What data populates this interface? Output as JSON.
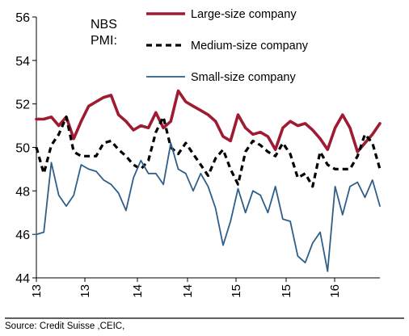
{
  "chart_data": {
    "type": "line",
    "title_lines": [
      "NBS",
      "PMI:"
    ],
    "xlabel": "",
    "ylabel": "",
    "ylim": [
      44,
      56
    ],
    "yticks": [
      44,
      46,
      48,
      50,
      52,
      54,
      56
    ],
    "x_tick_labels": [
      "13",
      "13",
      "14",
      "14",
      "15",
      "15",
      "16"
    ],
    "grid": false,
    "legend_position": "top-right",
    "x": [
      0,
      1,
      2,
      3,
      4,
      5,
      6,
      7,
      8,
      9,
      10,
      11,
      12,
      13,
      14,
      15,
      16,
      17,
      18,
      19,
      20,
      21,
      22,
      23,
      24,
      25,
      26,
      27,
      28,
      29,
      30,
      31,
      32,
      33,
      34,
      35,
      36,
      37,
      38,
      39,
      40,
      41,
      42,
      43,
      44,
      45,
      46
    ],
    "series": [
      {
        "name": "Large-size company",
        "color": "#9e1b32",
        "style": "solid",
        "values": [
          51.3,
          51.3,
          51.4,
          51.0,
          51.4,
          50.4,
          51.2,
          51.9,
          52.1,
          52.3,
          52.4,
          51.5,
          51.2,
          50.8,
          51.0,
          50.9,
          51.6,
          50.9,
          51.2,
          52.6,
          52.1,
          51.9,
          51.7,
          51.5,
          51.2,
          50.5,
          50.3,
          51.5,
          50.9,
          50.6,
          50.7,
          50.5,
          49.9,
          50.9,
          51.2,
          51.0,
          51.1,
          50.8,
          50.4,
          49.9,
          50.9,
          51.5,
          50.9,
          49.8,
          50.2,
          50.6,
          51.1
        ]
      },
      {
        "name": "Medium-size company",
        "color": "#000000",
        "style": "dashed",
        "values": [
          50.0,
          48.8,
          50.1,
          50.6,
          51.4,
          49.8,
          49.6,
          49.6,
          49.6,
          50.2,
          50.3,
          49.9,
          49.6,
          49.2,
          49.0,
          49.4,
          50.7,
          51.4,
          50.0,
          49.7,
          50.2,
          49.7,
          49.2,
          48.7,
          49.5,
          49.9,
          49.0,
          48.3,
          49.8,
          50.3,
          50.1,
          49.8,
          49.6,
          50.2,
          49.7,
          48.6,
          48.8,
          48.2,
          49.8,
          49.2,
          49.0,
          49.0,
          49.0,
          49.6,
          50.6,
          50.2,
          49.0
        ]
      },
      {
        "name": "Small-size company",
        "color": "#2e5f8a",
        "style": "solid",
        "values": [
          46.0,
          46.1,
          49.3,
          47.8,
          47.3,
          47.8,
          49.2,
          49.0,
          48.9,
          48.5,
          48.3,
          47.9,
          47.1,
          48.6,
          49.4,
          48.8,
          48.8,
          48.3,
          50.2,
          49.0,
          48.8,
          48.0,
          48.8,
          48.2,
          47.2,
          45.5,
          46.6,
          48.1,
          47.0,
          48.0,
          47.8,
          47.0,
          48.2,
          46.7,
          46.6,
          45.0,
          44.7,
          45.6,
          46.1,
          44.3,
          48.2,
          46.9,
          48.2,
          48.4,
          47.7,
          48.5,
          47.3
        ]
      }
    ],
    "annotations": []
  },
  "source_text": "Source: Credit Suisse ,CEIC,"
}
